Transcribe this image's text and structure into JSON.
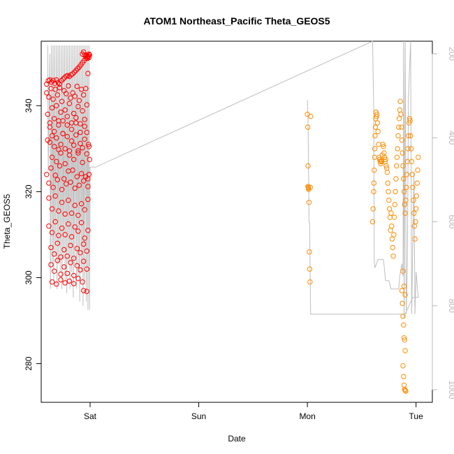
{
  "chart_data": {
    "type": "scatter",
    "title": "ATOM1 Northeast_Pacific Theta_GEOS5",
    "xlabel": "Date",
    "ylabel": "Theta_GEOS5",
    "x_ticks": [
      "Sat",
      "Sun",
      "Mon",
      "Tue"
    ],
    "y_ticks": [
      280,
      300,
      320,
      340
    ],
    "y2_ticks": [
      200,
      400,
      600,
      800,
      1000
    ],
    "xlim_days": [
      -0.45,
      3.15
    ],
    "ylim": [
      271,
      355
    ],
    "y2lim": [
      1030,
      170
    ],
    "grid": false,
    "legend": "none",
    "colors": {
      "series_a": "#ff0000",
      "series_b": "#ff8c00",
      "secondary_line": "#bebebe",
      "right_axis": "#b8b8b8"
    },
    "series": [
      {
        "x": [
          -0.4,
          -0.385,
          -0.37,
          -0.355,
          -0.34,
          -0.325,
          -0.31,
          -0.295,
          -0.28,
          -0.265,
          -0.25,
          -0.235,
          -0.22,
          -0.205,
          -0.19,
          -0.175,
          -0.16,
          -0.145,
          -0.13,
          -0.115,
          -0.1,
          -0.085,
          -0.07,
          -0.055,
          -0.04,
          -0.025,
          -0.01,
          -0.4,
          -0.38,
          -0.36,
          -0.34,
          -0.32,
          -0.3,
          -0.28,
          -0.26,
          -0.24,
          -0.22,
          -0.2,
          -0.18,
          -0.16,
          -0.14,
          -0.12,
          -0.1,
          -0.08,
          -0.06,
          -0.04,
          -0.02,
          -0.39,
          -0.37,
          -0.35,
          -0.33,
          -0.31,
          -0.29,
          -0.27,
          -0.25,
          -0.23,
          -0.21,
          -0.19,
          -0.17,
          -0.15,
          -0.13,
          -0.11,
          -0.09,
          -0.07,
          -0.05,
          -0.03,
          -0.39,
          -0.37,
          -0.35,
          -0.33,
          -0.31,
          -0.29,
          -0.27,
          -0.25,
          -0.23,
          -0.21,
          -0.19,
          -0.17,
          -0.15,
          -0.13,
          -0.11,
          -0.09,
          -0.07,
          -0.05,
          -0.03,
          -0.4,
          -0.38,
          -0.36,
          -0.34,
          -0.32,
          -0.3,
          -0.28,
          -0.26,
          -0.24,
          -0.22,
          -0.2,
          -0.18,
          -0.16,
          -0.14,
          -0.12,
          -0.1,
          -0.08,
          -0.06,
          -0.04,
          -0.02,
          -0.38,
          -0.35,
          -0.32,
          -0.29,
          -0.26,
          -0.23,
          -0.2,
          -0.17,
          -0.14,
          -0.11,
          -0.08,
          -0.05,
          -0.02,
          -0.38,
          -0.35,
          -0.32,
          -0.29,
          -0.26,
          -0.23,
          -0.2,
          -0.17,
          -0.14,
          -0.11,
          -0.08,
          -0.05,
          -0.02,
          -0.36,
          -0.33,
          -0.3,
          -0.27,
          -0.24,
          -0.21,
          -0.18,
          -0.15,
          -0.12,
          -0.09,
          -0.06,
          -0.03,
          -0.36,
          -0.33,
          -0.3,
          -0.27,
          -0.24,
          -0.21,
          -0.18,
          -0.15,
          -0.12,
          -0.09,
          -0.06,
          -0.03,
          -0.35,
          -0.31,
          -0.27,
          -0.23,
          -0.19,
          -0.15,
          -0.11,
          -0.07,
          -0.03,
          -0.35,
          -0.31,
          -0.27,
          -0.23,
          -0.19,
          -0.15,
          -0.11,
          -0.07,
          -0.03,
          -0.37,
          -0.33,
          -0.29,
          -0.25,
          -0.21,
          -0.17,
          -0.13,
          -0.09,
          -0.05,
          -0.07,
          -0.06,
          -0.05,
          -0.04,
          -0.035,
          -0.03,
          -0.025,
          -0.02,
          -0.015,
          -0.01,
          -0.005,
          -0.06,
          -0.02,
          -0.01,
          -0.015,
          -0.005,
          -0.01
        ],
        "y": [
          345.0,
          345.8,
          346.0,
          345.5,
          345.9,
          345.2,
          346.0,
          345.4,
          345.0,
          345.8,
          346.2,
          346.5,
          346.9,
          347.0,
          346.8,
          347.2,
          347.4,
          347.8,
          348.2,
          348.6,
          349.0,
          349.5,
          350.0,
          350.5,
          351.0,
          351.5,
          352.0,
          343.0,
          342.0,
          344.0,
          341.5,
          343.8,
          342.5,
          344.2,
          341.0,
          343.5,
          342.8,
          344.6,
          341.8,
          343.0,
          342.2,
          344.5,
          341.2,
          343.8,
          342.5,
          344.0,
          347.5,
          338.0,
          336.0,
          339.5,
          337.0,
          340.0,
          335.5,
          338.5,
          336.5,
          339.0,
          337.5,
          340.5,
          336.0,
          338.2,
          337.2,
          339.8,
          335.8,
          338.8,
          336.8,
          340.2,
          332.0,
          331.5,
          333.0,
          330.5,
          332.5,
          329.8,
          331.0,
          333.5,
          330.0,
          332.8,
          329.5,
          331.8,
          330.8,
          333.2,
          329.0,
          331.2,
          330.2,
          332.2,
          333.8,
          324.0,
          322.0,
          325.5,
          321.0,
          323.8,
          322.8,
          326.0,
          320.5,
          323.0,
          321.8,
          324.8,
          322.2,
          325.0,
          320.8,
          323.5,
          321.5,
          324.2,
          322.5,
          323.5,
          321.2,
          318.5,
          316.0,
          319.0,
          315.5,
          317.5,
          314.8,
          318.0,
          315.0,
          316.8,
          314.5,
          317.2,
          315.8,
          318.2,
          312.0,
          310.5,
          313.0,
          309.8,
          311.5,
          310.0,
          312.5,
          309.5,
          311.8,
          310.8,
          312.8,
          309.2,
          311.0,
          307.0,
          305.5,
          308.0,
          304.8,
          306.5,
          305.0,
          307.5,
          304.5,
          306.8,
          305.8,
          307.8,
          306.2,
          303.0,
          301.5,
          304.0,
          300.8,
          302.5,
          301.0,
          303.5,
          300.5,
          302.8,
          301.8,
          303.8,
          302.0,
          299.0,
          298.5,
          299.5,
          298.8,
          299.2,
          298.6,
          299.8,
          299.0,
          296.8,
          328.0,
          327.0,
          329.0,
          326.5,
          328.5,
          327.5,
          329.5,
          326.8,
          328.8,
          335.0,
          334.0,
          336.5,
          333.5,
          335.5,
          334.5,
          336.0,
          333.8,
          335.2,
          352.0,
          352.5,
          351.8,
          351.5,
          351.8,
          351.2,
          351.0,
          351.4,
          351.6,
          351.2,
          351.8,
          297.0,
          323.0,
          330.5,
          331.0,
          327.5,
          324.0
        ]
      },
      {
        "x": [
          2.0,
          2.003,
          2.006,
          2.009,
          2.012,
          2.015,
          2.018,
          2.021,
          2.024,
          2.027,
          2.03,
          2.005,
          2.01,
          2.6,
          2.605,
          2.61,
          2.612,
          2.615,
          2.618,
          2.62,
          2.623,
          2.626,
          2.629,
          2.632,
          2.636,
          2.64,
          2.645,
          2.65,
          2.655,
          2.66,
          2.665,
          2.67,
          2.675,
          2.68,
          2.685,
          2.69,
          2.695,
          2.7,
          2.705,
          2.71,
          2.715,
          2.72,
          2.725,
          2.73,
          2.735,
          2.74,
          2.745,
          2.75,
          2.755,
          2.76,
          2.765,
          2.77,
          2.775,
          2.78,
          2.785,
          2.79,
          2.795,
          2.8,
          2.805,
          2.81,
          2.815,
          2.82,
          2.825,
          2.83,
          2.835,
          2.84,
          2.845,
          2.85,
          2.855,
          2.86,
          2.865,
          2.87,
          2.875,
          2.88,
          2.885,
          2.89,
          2.895,
          2.9,
          2.905,
          2.91,
          2.915,
          2.92,
          2.925,
          2.93,
          2.935,
          2.94,
          2.945,
          2.95,
          2.955,
          2.96,
          2.965,
          2.97,
          2.975,
          2.98,
          2.985,
          2.99,
          2.995,
          3.0,
          3.005,
          3.01,
          3.015,
          3.02,
          2.87,
          2.875,
          2.88,
          2.885,
          2.89,
          2.895,
          2.9,
          2.88,
          2.885,
          2.89,
          2.895,
          2.9,
          2.905,
          2.88,
          2.89,
          2.9
        ],
        "y": [
          338.0,
          335.0,
          326.0,
          321.0,
          320.5,
          317.5,
          306.0,
          302.0,
          299.0,
          321.0,
          337.5,
          321.2,
          320.8,
          313.0,
          316.0,
          320.0,
          322.0,
          325.0,
          328.0,
          330.0,
          333.0,
          335.0,
          337.0,
          338.5,
          337.5,
          338.0,
          336.0,
          334.0,
          331.0,
          328.0,
          327.5,
          327.0,
          326.5,
          327.2,
          327.0,
          328.5,
          331.0,
          330.5,
          329.0,
          328.0,
          327.0,
          327.5,
          326.0,
          325.5,
          324.5,
          322.0,
          320.0,
          318.0,
          316.0,
          314.0,
          311.0,
          315.0,
          312.0,
          309.0,
          307.0,
          305.0,
          310.0,
          314.0,
          317.0,
          320.0,
          323.0,
          326.0,
          328.0,
          330.0,
          333.0,
          335.0,
          337.0,
          339.0,
          341.0,
          338.0,
          335.0,
          332.0,
          329.0,
          326.0,
          323.0,
          320.0,
          317.0,
          315.0,
          318.0,
          321.0,
          324.0,
          327.0,
          330.0,
          333.0,
          336.0,
          337.0,
          336.5,
          333.0,
          330.0,
          327.0,
          324.0,
          321.0,
          318.0,
          315.0,
          312.0,
          309.0,
          313.0,
          316.0,
          319.0,
          322.0,
          325.0,
          328.0,
          297.0,
          294.0,
          291.0,
          289.0,
          286.0,
          285.5,
          283.0,
          279.5,
          277.0,
          275.0,
          274.0,
          273.8,
          273.6,
          301.5,
          298.0,
          296.0
        ]
      }
    ],
    "secondary_line": {
      "x": [
        -0.39,
        -0.385,
        -0.37,
        -0.365,
        -0.355,
        -0.35,
        -0.34,
        -0.335,
        -0.325,
        -0.32,
        -0.31,
        -0.305,
        -0.295,
        -0.29,
        -0.28,
        -0.275,
        -0.265,
        -0.26,
        -0.25,
        -0.245,
        -0.235,
        -0.23,
        -0.22,
        -0.215,
        -0.205,
        -0.2,
        -0.19,
        -0.185,
        -0.175,
        -0.17,
        -0.16,
        -0.155,
        -0.145,
        -0.14,
        -0.13,
        -0.125,
        -0.115,
        -0.11,
        -0.1,
        -0.095,
        -0.085,
        -0.08,
        -0.07,
        -0.065,
        -0.055,
        -0.05,
        -0.04,
        -0.035,
        -0.025,
        -0.02,
        -0.01,
        -0.005,
        0.0,
        0.05,
        2.6,
        2.61,
        2.615,
        2.62,
        2.65,
        2.66,
        2.7,
        2.72,
        2.75,
        2.77,
        2.8,
        2.81,
        2.83,
        2.84,
        2.85,
        2.87,
        2.88,
        2.885,
        2.89,
        2.9,
        2.91,
        2.92,
        2.93,
        2.95,
        2.96,
        2.98,
        2.99,
        3.0,
        3.02,
        2.97,
        2.9,
        2.5,
        2.03,
        2.02,
        2.015,
        2.01,
        2.005,
        2.0
      ],
      "y": [
        180,
        480,
        200,
        760,
        180,
        700,
        180,
        740,
        180,
        680,
        180,
        760,
        180,
        700,
        180,
        720,
        180,
        760,
        180,
        690,
        180,
        740,
        180,
        770,
        180,
        700,
        180,
        760,
        180,
        720,
        180,
        780,
        180,
        700,
        180,
        760,
        180,
        730,
        180,
        790,
        180,
        720,
        180,
        800,
        180,
        740,
        180,
        790,
        180,
        810,
        180,
        810,
        470,
        470,
        160,
        330,
        690,
        710,
        690,
        690,
        690,
        740,
        740,
        760,
        760,
        760,
        760,
        760,
        730,
        700,
        730,
        160,
        830,
        160,
        820,
        700,
        300,
        160,
        820,
        480,
        820,
        720,
        780,
        780,
        820,
        820,
        820,
        600,
        600,
        450,
        350,
        310
      ]
    }
  }
}
